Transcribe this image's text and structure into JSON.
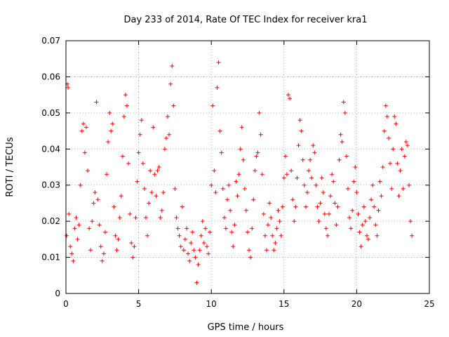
{
  "chart_data": {
    "type": "scatter",
    "title": "Day 233 of 2014, Rate Of TEC Index for receiver kra1",
    "xlabel": "GPS time / hours",
    "ylabel": "ROTI / TECUs",
    "xlim": [
      0,
      25
    ],
    "ylim": [
      0,
      0.07
    ],
    "xticks": [
      "0",
      "5",
      "10",
      "15",
      "20",
      "25"
    ],
    "yticks": [
      "0",
      "0.01",
      "0.02",
      "0.03",
      "0.04",
      "0.05",
      "0.06",
      "0.07"
    ],
    "grid": true,
    "legend": "none",
    "marker": "plus",
    "color": "#ff0000",
    "series": [
      {
        "points": [
          [
            0.05,
            0.016
          ],
          [
            0.1,
            0.058
          ],
          [
            0.15,
            0.057
          ],
          [
            0.2,
            0.022
          ],
          [
            0.3,
            0.013
          ],
          [
            0.4,
            0.011
          ],
          [
            0.5,
            0.009
          ],
          [
            0.6,
            0.018
          ],
          [
            0.7,
            0.021
          ],
          [
            0.8,
            0.015
          ],
          [
            0.9,
            0.019
          ],
          [
            1.0,
            0.03
          ],
          [
            1.1,
            0.045
          ],
          [
            1.2,
            0.047
          ],
          [
            1.3,
            0.039
          ],
          [
            1.4,
            0.046
          ],
          [
            1.5,
            0.034
          ],
          [
            1.6,
            0.018
          ],
          [
            1.7,
            0.012
          ],
          [
            1.8,
            0.02
          ],
          [
            1.9,
            0.025
          ],
          [
            2.0,
            0.028
          ],
          [
            2.1,
            0.053
          ],
          [
            2.2,
            0.026
          ],
          [
            2.3,
            0.019
          ],
          [
            2.4,
            0.013
          ],
          [
            2.5,
            0.009
          ],
          [
            2.6,
            0.011
          ],
          [
            2.7,
            0.017
          ],
          [
            2.8,
            0.033
          ],
          [
            2.9,
            0.042
          ],
          [
            3.0,
            0.05
          ],
          [
            3.1,
            0.045
          ],
          [
            3.2,
            0.047
          ],
          [
            3.3,
            0.024
          ],
          [
            3.4,
            0.016
          ],
          [
            3.5,
            0.012
          ],
          [
            3.6,
            0.015
          ],
          [
            3.7,
            0.021
          ],
          [
            3.8,
            0.027
          ],
          [
            3.9,
            0.038
          ],
          [
            4.0,
            0.049
          ],
          [
            4.1,
            0.055
          ],
          [
            4.2,
            0.052
          ],
          [
            4.3,
            0.036
          ],
          [
            4.4,
            0.022
          ],
          [
            4.5,
            0.014
          ],
          [
            4.6,
            0.01
          ],
          [
            4.7,
            0.013
          ],
          [
            4.8,
            0.021
          ],
          [
            4.9,
            0.031
          ],
          [
            5.0,
            0.039
          ],
          [
            5.1,
            0.044
          ],
          [
            5.2,
            0.048
          ],
          [
            5.3,
            0.036
          ],
          [
            5.4,
            0.029
          ],
          [
            5.5,
            0.021
          ],
          [
            5.6,
            0.016
          ],
          [
            5.7,
            0.025
          ],
          [
            5.8,
            0.034
          ],
          [
            5.9,
            0.028
          ],
          [
            6.0,
            0.046
          ],
          [
            6.1,
            0.033
          ],
          [
            6.2,
            0.027
          ],
          [
            6.3,
            0.034
          ],
          [
            6.4,
            0.035
          ],
          [
            6.5,
            0.021
          ],
          [
            6.6,
            0.023
          ],
          [
            6.7,
            0.028
          ],
          [
            6.8,
            0.04
          ],
          [
            6.9,
            0.043
          ],
          [
            7.0,
            0.049
          ],
          [
            7.1,
            0.044
          ],
          [
            7.2,
            0.058
          ],
          [
            7.3,
            0.063
          ],
          [
            7.4,
            0.052
          ],
          [
            7.5,
            0.029
          ],
          [
            7.6,
            0.021
          ],
          [
            7.7,
            0.018
          ],
          [
            7.8,
            0.016
          ],
          [
            7.9,
            0.013
          ],
          [
            8.0,
            0.024
          ],
          [
            8.1,
            0.012
          ],
          [
            8.2,
            0.015
          ],
          [
            8.3,
            0.018
          ],
          [
            8.4,
            0.011
          ],
          [
            8.5,
            0.009
          ],
          [
            8.6,
            0.014
          ],
          [
            8.7,
            0.017
          ],
          [
            8.8,
            0.012
          ],
          [
            8.9,
            0.01
          ],
          [
            9.0,
            0.003
          ],
          [
            9.1,
            0.008
          ],
          [
            9.2,
            0.012
          ],
          [
            9.3,
            0.016
          ],
          [
            9.4,
            0.02
          ],
          [
            9.5,
            0.014
          ],
          [
            9.6,
            0.018
          ],
          [
            9.7,
            0.013
          ],
          [
            9.8,
            0.011
          ],
          [
            9.9,
            0.017
          ],
          [
            10.0,
            0.03
          ],
          [
            10.1,
            0.052
          ],
          [
            10.2,
            0.034
          ],
          [
            10.3,
            0.028
          ],
          [
            10.4,
            0.057
          ],
          [
            10.5,
            0.064
          ],
          [
            10.6,
            0.045
          ],
          [
            10.7,
            0.039
          ],
          [
            10.8,
            0.029
          ],
          [
            10.9,
            0.021
          ],
          [
            11.0,
            0.018
          ],
          [
            11.1,
            0.026
          ],
          [
            11.2,
            0.03
          ],
          [
            11.3,
            0.023
          ],
          [
            11.4,
            0.017
          ],
          [
            11.5,
            0.013
          ],
          [
            11.6,
            0.019
          ],
          [
            11.7,
            0.031
          ],
          [
            11.8,
            0.027
          ],
          [
            11.9,
            0.033
          ],
          [
            12.0,
            0.04
          ],
          [
            12.1,
            0.046
          ],
          [
            12.2,
            0.037
          ],
          [
            12.3,
            0.029
          ],
          [
            12.4,
            0.023
          ],
          [
            12.5,
            0.017
          ],
          [
            12.6,
            0.012
          ],
          [
            12.7,
            0.01
          ],
          [
            12.8,
            0.018
          ],
          [
            12.9,
            0.026
          ],
          [
            13.0,
            0.034
          ],
          [
            13.1,
            0.038
          ],
          [
            13.2,
            0.039
          ],
          [
            13.3,
            0.05
          ],
          [
            13.4,
            0.044
          ],
          [
            13.5,
            0.033
          ],
          [
            13.6,
            0.022
          ],
          [
            13.7,
            0.016
          ],
          [
            13.8,
            0.012
          ],
          [
            13.9,
            0.019
          ],
          [
            14.0,
            0.025
          ],
          [
            14.1,
            0.021
          ],
          [
            14.2,
            0.016
          ],
          [
            14.3,
            0.012
          ],
          [
            14.4,
            0.014
          ],
          [
            14.5,
            0.018
          ],
          [
            14.6,
            0.023
          ],
          [
            14.7,
            0.02
          ],
          [
            14.8,
            0.016
          ],
          [
            14.9,
            0.024
          ],
          [
            15.0,
            0.032
          ],
          [
            15.1,
            0.038
          ],
          [
            15.2,
            0.033
          ],
          [
            15.3,
            0.055
          ],
          [
            15.4,
            0.054
          ],
          [
            15.5,
            0.034
          ],
          [
            15.6,
            0.026
          ],
          [
            15.7,
            0.02
          ],
          [
            15.8,
            0.024
          ],
          [
            15.9,
            0.032
          ],
          [
            16.0,
            0.041
          ],
          [
            16.1,
            0.048
          ],
          [
            16.2,
            0.045
          ],
          [
            16.3,
            0.037
          ],
          [
            16.4,
            0.03
          ],
          [
            16.5,
            0.024
          ],
          [
            16.6,
            0.028
          ],
          [
            16.7,
            0.034
          ],
          [
            16.8,
            0.037
          ],
          [
            16.9,
            0.032
          ],
          [
            17.0,
            0.041
          ],
          [
            17.1,
            0.039
          ],
          [
            17.2,
            0.03
          ],
          [
            17.3,
            0.024
          ],
          [
            17.4,
            0.02
          ],
          [
            17.5,
            0.025
          ],
          [
            17.6,
            0.032
          ],
          [
            17.7,
            0.028
          ],
          [
            17.8,
            0.022
          ],
          [
            17.9,
            0.018
          ],
          [
            18.0,
            0.016
          ],
          [
            18.1,
            0.022
          ],
          [
            18.2,
            0.027
          ],
          [
            18.3,
            0.033
          ],
          [
            18.4,
            0.031
          ],
          [
            18.5,
            0.025
          ],
          [
            18.6,
            0.019
          ],
          [
            18.7,
            0.024
          ],
          [
            18.8,
            0.037
          ],
          [
            18.9,
            0.044
          ],
          [
            19.0,
            0.042
          ],
          [
            19.1,
            0.053
          ],
          [
            19.2,
            0.05
          ],
          [
            19.3,
            0.038
          ],
          [
            19.4,
            0.029
          ],
          [
            19.5,
            0.021
          ],
          [
            19.6,
            0.018
          ],
          [
            19.7,
            0.023
          ],
          [
            19.8,
            0.031
          ],
          [
            19.9,
            0.035
          ],
          [
            20.0,
            0.028
          ],
          [
            20.1,
            0.022
          ],
          [
            20.2,
            0.017
          ],
          [
            20.3,
            0.013
          ],
          [
            20.4,
            0.019
          ],
          [
            20.5,
            0.024
          ],
          [
            20.6,
            0.02
          ],
          [
            20.7,
            0.016
          ],
          [
            20.8,
            0.015
          ],
          [
            20.9,
            0.021
          ],
          [
            21.0,
            0.026
          ],
          [
            21.1,
            0.03
          ],
          [
            21.2,
            0.024
          ],
          [
            21.3,
            0.019
          ],
          [
            21.4,
            0.016
          ],
          [
            21.5,
            0.023
          ],
          [
            21.6,
            0.031
          ],
          [
            21.7,
            0.027
          ],
          [
            21.8,
            0.035
          ],
          [
            21.9,
            0.045
          ],
          [
            22.0,
            0.052
          ],
          [
            22.1,
            0.049
          ],
          [
            22.2,
            0.043
          ],
          [
            22.3,
            0.036
          ],
          [
            22.4,
            0.029
          ],
          [
            22.5,
            0.04
          ],
          [
            22.6,
            0.049
          ],
          [
            22.7,
            0.047
          ],
          [
            22.8,
            0.036
          ],
          [
            22.9,
            0.027
          ],
          [
            23.0,
            0.034
          ],
          [
            23.1,
            0.04
          ],
          [
            23.2,
            0.029
          ],
          [
            23.3,
            0.038
          ],
          [
            23.4,
            0.042
          ],
          [
            23.5,
            0.041
          ],
          [
            23.6,
            0.03
          ],
          [
            23.7,
            0.02
          ],
          [
            23.8,
            0.016
          ]
        ]
      }
    ]
  }
}
